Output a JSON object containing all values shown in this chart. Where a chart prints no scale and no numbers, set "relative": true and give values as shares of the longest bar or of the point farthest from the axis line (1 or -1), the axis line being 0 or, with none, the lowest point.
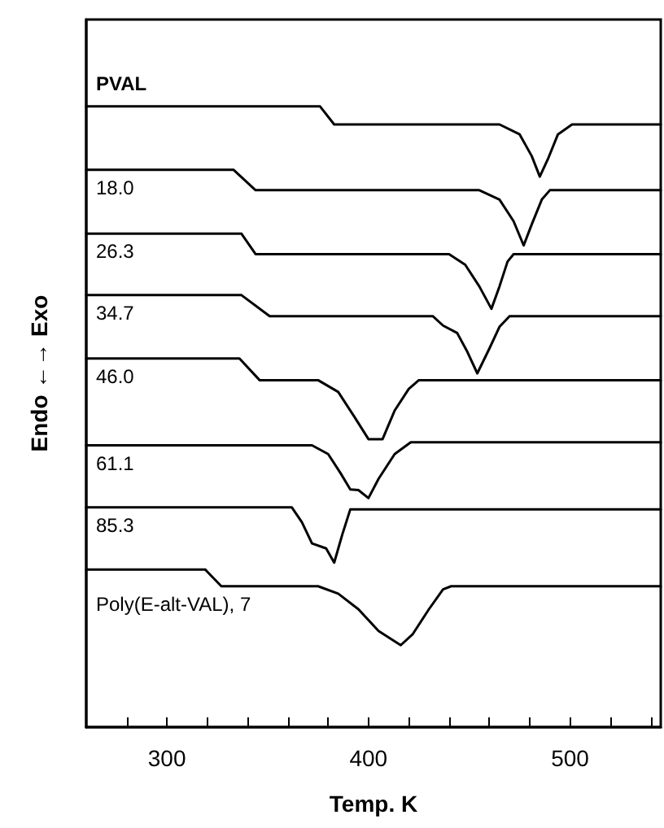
{
  "chart_data": {
    "type": "line",
    "relative": true,
    "xlabel": "Temp. K",
    "ylabel": "Endo ←→ Exo",
    "marker": "none",
    "line_style": "solid",
    "grid": false,
    "tick_labels": "x",
    "xlim": [
      260,
      545
    ],
    "xticks": [
      {
        "value": 280,
        "label": null
      },
      300,
      {
        "value": 320,
        "label": null
      },
      {
        "value": 340,
        "label": null
      },
      {
        "value": 360,
        "label": null
      },
      {
        "value": 380,
        "label": null
      },
      400,
      {
        "value": 420,
        "label": null
      },
      {
        "value": 440,
        "label": null
      },
      {
        "value": 460,
        "label": null
      },
      {
        "value": 480,
        "label": null
      },
      500,
      {
        "value": 520,
        "label": null
      },
      {
        "value": 540,
        "label": null
      }
    ],
    "series": [
      {
        "name": "PVAL",
        "color": "#000000",
        "x": [
          260,
          376,
          383,
          465,
          475,
          481,
          485,
          489,
          494,
          501,
          545
        ],
        "values": [
          1.0,
          1.0,
          0.971,
          0.971,
          0.955,
          0.92,
          0.887,
          0.915,
          0.955,
          0.971,
          0.971
        ]
      },
      {
        "name": "18.0",
        "color": "#000000",
        "x": [
          260,
          333,
          344,
          455,
          465,
          472,
          477,
          481,
          486,
          490,
          545
        ],
        "values": [
          0.898,
          0.898,
          0.865,
          0.865,
          0.85,
          0.815,
          0.776,
          0.81,
          0.85,
          0.865,
          0.865
        ]
      },
      {
        "name": "26.3",
        "color": "#000000",
        "x": [
          260,
          337,
          344,
          440,
          448,
          455,
          461,
          465,
          469,
          472,
          545
        ],
        "values": [
          0.795,
          0.795,
          0.762,
          0.762,
          0.745,
          0.71,
          0.674,
          0.71,
          0.75,
          0.762,
          0.762
        ]
      },
      {
        "name": "34.7",
        "color": "#000000",
        "x": [
          260,
          337,
          351,
          432,
          437,
          444,
          449,
          454,
          460,
          465,
          470,
          545
        ],
        "values": [
          0.696,
          0.696,
          0.662,
          0.662,
          0.647,
          0.635,
          0.605,
          0.57,
          0.61,
          0.645,
          0.662,
          0.662
        ]
      },
      {
        "name": "46.0",
        "color": "#000000",
        "x": [
          260,
          336,
          346,
          375,
          385,
          393,
          400,
          407,
          413,
          420,
          425,
          545
        ],
        "values": [
          0.594,
          0.594,
          0.559,
          0.559,
          0.54,
          0.5,
          0.464,
          0.464,
          0.51,
          0.545,
          0.559,
          0.559
        ]
      },
      {
        "name": "61.1",
        "color": "#000000",
        "x": [
          260,
          372,
          380,
          386,
          391,
          395,
          400,
          405,
          413,
          421,
          545
        ],
        "values": [
          0.454,
          0.454,
          0.44,
          0.41,
          0.383,
          0.382,
          0.369,
          0.4,
          0.44,
          0.459,
          0.459
        ]
      },
      {
        "name": "85.3",
        "color": "#000000",
        "x": [
          260,
          362,
          367,
          372,
          379,
          383,
          387,
          391,
          545
        ],
        "values": [
          0.354,
          0.354,
          0.33,
          0.296,
          0.288,
          0.265,
          0.31,
          0.351,
          0.351
        ]
      },
      {
        "name": "Poly(E-alt-VAL), 7",
        "color": "#000000",
        "x": [
          260,
          319,
          327,
          375,
          385,
          395,
          405,
          416,
          422,
          430,
          437,
          441,
          545
        ],
        "values": [
          0.254,
          0.254,
          0.227,
          0.227,
          0.215,
          0.19,
          0.155,
          0.132,
          0.15,
          0.19,
          0.222,
          0.227,
          0.227
        ]
      }
    ]
  }
}
